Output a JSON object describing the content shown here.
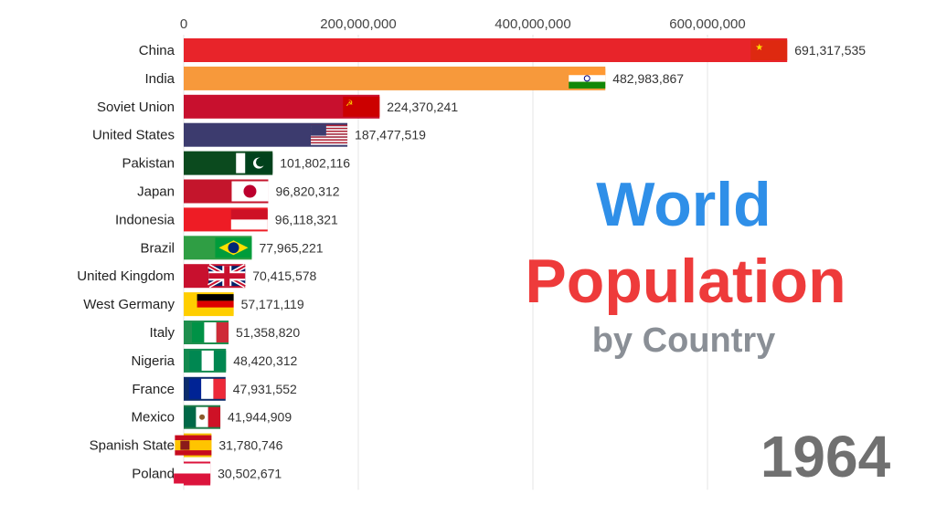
{
  "chart_data": {
    "type": "bar",
    "orientation": "horizontal",
    "title": "World",
    "title_line2": "Population",
    "subtitle": "by Country",
    "year": "1964",
    "xlim": [
      0,
      700000000
    ],
    "x_ticks": [
      0,
      200000000,
      400000000,
      600000000
    ],
    "x_tick_labels": [
      "0",
      "200,000,000",
      "400,000,000",
      "600,000,000"
    ],
    "grid": true,
    "categories": [
      "China",
      "India",
      "Soviet Union",
      "United States",
      "Pakistan",
      "Japan",
      "Indonesia",
      "Brazil",
      "United Kingdom",
      "West Germany",
      "Italy",
      "Nigeria",
      "France",
      "Mexico",
      "Spanish State",
      "Poland"
    ],
    "values": [
      691317535,
      482983867,
      224370241,
      187477519,
      101802116,
      96820312,
      96118321,
      77965221,
      70415578,
      57171119,
      51358820,
      48420312,
      47931552,
      41944909,
      31780746,
      30502671
    ],
    "value_labels": [
      "691,317,535",
      "482,983,867",
      "224,370,241",
      "187,477,519",
      "101,802,116",
      "96,820,312",
      "96,118,321",
      "77,965,221",
      "70,415,578",
      "57,171,119",
      "51,358,820",
      "48,420,312",
      "47,931,552",
      "41,944,909",
      "31,780,746",
      "30,502,671"
    ],
    "colors": [
      "#e8242a",
      "#f7993b",
      "#c8102e",
      "#3c3b6e",
      "#0b4a1e",
      "#c4152c",
      "#ee1c25",
      "#2f9e44",
      "#c8102e",
      "#ffce00",
      "#1f8f4e",
      "#138a4f",
      "#0c2c6b",
      "#1e7a46",
      "#f5c400",
      "#dc143c"
    ],
    "flags": [
      "china-flag",
      "india-flag",
      "soviet-flag",
      "usa-flag",
      "pakistan-flag",
      "japan-flag",
      "indonesia-flag",
      "brazil-flag",
      "uk-flag",
      "germany-flag",
      "italy-flag",
      "nigeria-flag",
      "france-flag",
      "mexico-flag",
      "spain-flag",
      "poland-flag"
    ]
  }
}
